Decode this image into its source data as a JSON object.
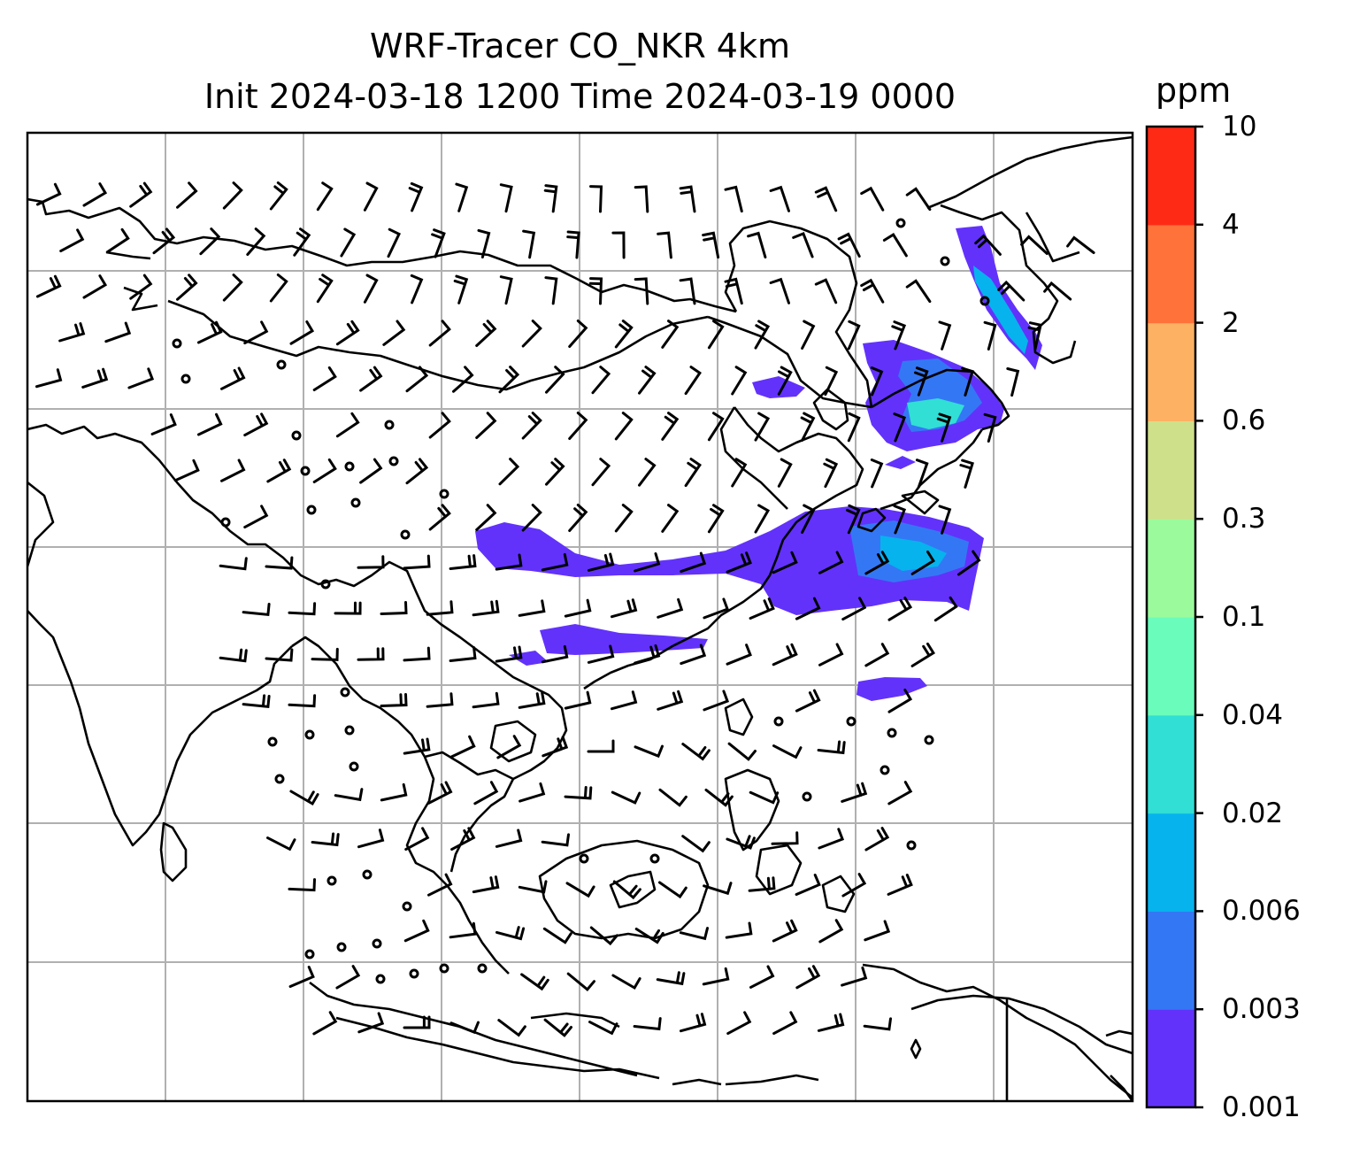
{
  "title": {
    "line1": "WRF-Tracer CO_NKR 4km",
    "line2": "Init 2024-03-18 1200 Time 2024-03-19 0000"
  },
  "map": {
    "background": "#ffffff",
    "gridlines": true,
    "coastline_color": "#000000",
    "wind_barb_color": "#000000"
  },
  "colorbar": {
    "unit": "ppm",
    "ticks": [
      "0.001",
      "0.003",
      "0.006",
      "0.02",
      "0.04",
      "0.1",
      "0.3",
      "0.6",
      "2",
      "4",
      "10"
    ],
    "colors": [
      "#6232fb",
      "#3477f5",
      "#06b3ed",
      "#31dfd5",
      "#6afcbb",
      "#9bfb9c",
      "#cfe08a",
      "#fdb163",
      "#ff7239",
      "#ff2a16"
    ]
  },
  "chart_data": {
    "type": "heatmap",
    "title": "WRF-Tracer CO_NKR 4km",
    "subtitle": "Init 2024-03-18 1200 Time 2024-03-19 0000",
    "colorbar_label": "ppm",
    "levels": [
      0.001,
      0.003,
      0.006,
      0.02,
      0.04,
      0.1,
      0.3,
      0.6,
      2,
      4,
      10
    ],
    "grid": true
  }
}
